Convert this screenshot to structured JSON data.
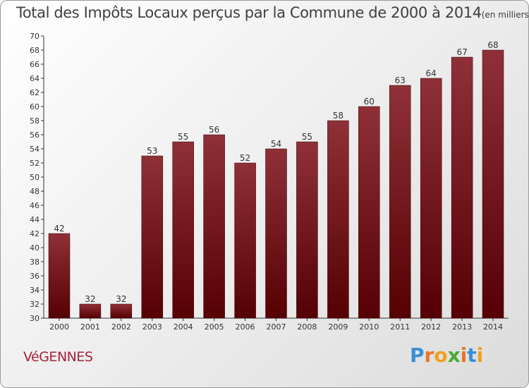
{
  "header": {
    "title": "Total des Impôts Locaux perçus par la Commune de 2000 à 2014",
    "unit": "(en milliers d'€)"
  },
  "footer": {
    "commune": "VéGENNES",
    "brand": "Proxiti"
  },
  "colors": {
    "bar_top": "#8f3038",
    "bar_bottom": "#550004",
    "commune_text": "#a8233a",
    "brand_letters": [
      "#3a8fd6",
      "#e8762a",
      "#f0a020",
      "#4aa832",
      "#e8762a",
      "#3a8fd6",
      "#f0a020"
    ]
  },
  "chart_data": {
    "type": "bar",
    "title": "Total des Impôts Locaux perçus par la Commune de 2000 à 2014",
    "ylabel": "(en milliers d'€)",
    "xlabel": "",
    "categories": [
      "2000",
      "2001",
      "2002",
      "2003",
      "2004",
      "2005",
      "2006",
      "2007",
      "2008",
      "2009",
      "2010",
      "2011",
      "2012",
      "2013",
      "2014"
    ],
    "values": [
      42,
      32,
      32,
      53,
      55,
      56,
      52,
      54,
      55,
      58,
      60,
      63,
      64,
      67,
      68
    ],
    "ylim": [
      30,
      70
    ],
    "ytick_step": 2,
    "grid": false,
    "data_labels": true
  }
}
